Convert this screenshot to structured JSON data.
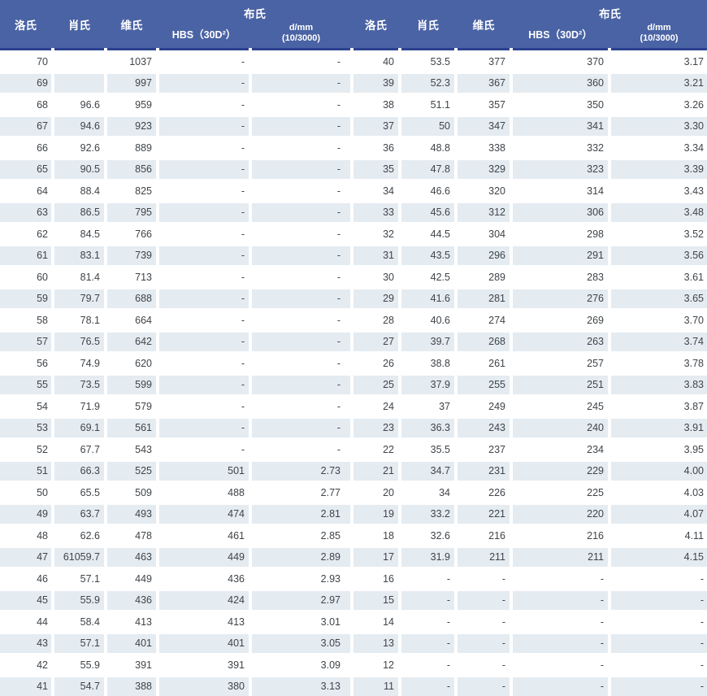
{
  "table": {
    "header": {
      "rockwell": "洛氏",
      "shore": "肖氏",
      "vickers": "维氏",
      "brinell_group": "布氏",
      "hbs_label": "HBS（30D²）",
      "dmm_line1": "d/mm",
      "dmm_line2": "(10/3000)"
    },
    "columns_per_half": [
      "洛氏",
      "肖氏",
      "维氏",
      "HBS（30D²）",
      "d/mm (10/3000)"
    ],
    "rows": [
      [
        "70",
        "",
        "1037",
        "-",
        "-",
        "40",
        "53.5",
        "377",
        "370",
        "3.17"
      ],
      [
        "69",
        "",
        "997",
        "-",
        "-",
        "39",
        "52.3",
        "367",
        "360",
        "3.21"
      ],
      [
        "68",
        "96.6",
        "959",
        "-",
        "-",
        "38",
        "51.1",
        "357",
        "350",
        "3.26"
      ],
      [
        "67",
        "94.6",
        "923",
        "-",
        "-",
        "37",
        "50",
        "347",
        "341",
        "3.30"
      ],
      [
        "66",
        "92.6",
        "889",
        "-",
        "-",
        "36",
        "48.8",
        "338",
        "332",
        "3.34"
      ],
      [
        "65",
        "90.5",
        "856",
        "-",
        "-",
        "35",
        "47.8",
        "329",
        "323",
        "3.39"
      ],
      [
        "64",
        "88.4",
        "825",
        "-",
        "-",
        "34",
        "46.6",
        "320",
        "314",
        "3.43"
      ],
      [
        "63",
        "86.5",
        "795",
        "-",
        "-",
        "33",
        "45.6",
        "312",
        "306",
        "3.48"
      ],
      [
        "62",
        "84.5",
        "766",
        "-",
        "-",
        "32",
        "44.5",
        "304",
        "298",
        "3.52"
      ],
      [
        "61",
        "83.1",
        "739",
        "-",
        "-",
        "31",
        "43.5",
        "296",
        "291",
        "3.56"
      ],
      [
        "60",
        "81.4",
        "713",
        "-",
        "-",
        "30",
        "42.5",
        "289",
        "283",
        "3.61"
      ],
      [
        "59",
        "79.7",
        "688",
        "-",
        "-",
        "29",
        "41.6",
        "281",
        "276",
        "3.65"
      ],
      [
        "58",
        "78.1",
        "664",
        "-",
        "-",
        "28",
        "40.6",
        "274",
        "269",
        "3.70"
      ],
      [
        "57",
        "76.5",
        "642",
        "-",
        "-",
        "27",
        "39.7",
        "268",
        "263",
        "3.74"
      ],
      [
        "56",
        "74.9",
        "620",
        "-",
        "-",
        "26",
        "38.8",
        "261",
        "257",
        "3.78"
      ],
      [
        "55",
        "73.5",
        "599",
        "-",
        "-",
        "25",
        "37.9",
        "255",
        "251",
        "3.83"
      ],
      [
        "54",
        "71.9",
        "579",
        "-",
        "-",
        "24",
        "37",
        "249",
        "245",
        "3.87"
      ],
      [
        "53",
        "69.1",
        "561",
        "-",
        "-",
        "23",
        "36.3",
        "243",
        "240",
        "3.91"
      ],
      [
        "52",
        "67.7",
        "543",
        "-",
        "-",
        "22",
        "35.5",
        "237",
        "234",
        "3.95"
      ],
      [
        "51",
        "66.3",
        "525",
        "501",
        "2.73",
        "21",
        "34.7",
        "231",
        "229",
        "4.00"
      ],
      [
        "50",
        "65.5",
        "509",
        "488",
        "2.77",
        "20",
        "34",
        "226",
        "225",
        "4.03"
      ],
      [
        "49",
        "63.7",
        "493",
        "474",
        "2.81",
        "19",
        "33.2",
        "221",
        "220",
        "4.07"
      ],
      [
        "48",
        "62.6",
        "478",
        "461",
        "2.85",
        "18",
        "32.6",
        "216",
        "216",
        "4.11"
      ],
      [
        "47",
        "61059.7",
        "463",
        "449",
        "2.89",
        "17",
        "31.9",
        "211",
        "211",
        "4.15"
      ],
      [
        "46",
        "57.1",
        "449",
        "436",
        "2.93",
        "16",
        "-",
        "-",
        "-",
        "-"
      ],
      [
        "45",
        "55.9",
        "436",
        "424",
        "2.97",
        "15",
        "-",
        "-",
        "-",
        "-"
      ],
      [
        "44",
        "58.4",
        "413",
        "413",
        "3.01",
        "14",
        "-",
        "-",
        "-",
        "-"
      ],
      [
        "43",
        "57.1",
        "401",
        "401",
        "3.05",
        "13",
        "-",
        "-",
        "-",
        "-"
      ],
      [
        "42",
        "55.9",
        "391",
        "391",
        "3.09",
        "12",
        "-",
        "-",
        "-",
        "-"
      ],
      [
        "41",
        "54.7",
        "388",
        "380",
        "3.13",
        "11",
        "-",
        "-",
        "-",
        "-"
      ]
    ]
  },
  "colors": {
    "header_bg": "#4a63a4",
    "header_underline": "#2d4191",
    "row_stripe": "#e4ebf1",
    "header_text": "#ffffff",
    "body_text": "#3f4449"
  }
}
